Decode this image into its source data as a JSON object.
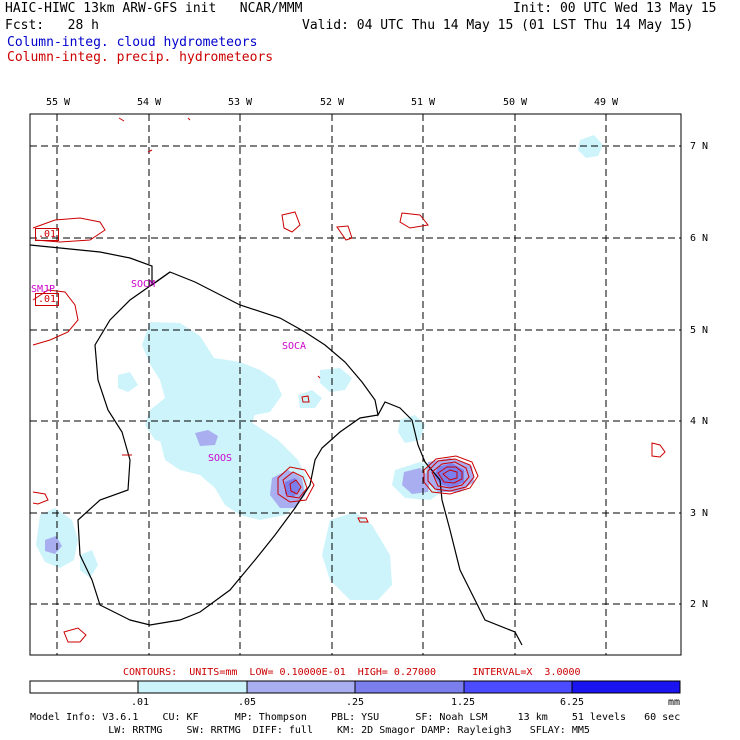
{
  "header": {
    "line1_left": "HAIC-HIWC 13km ARW-GFS init   NCAR/MMM",
    "line1_right": "Init: 00 UTC Wed 13 May 15",
    "line2_left": "Fcst:   28 h",
    "line2_right": "Valid: 04 UTC Thu 14 May 15 (01 LST Thu 14 May 15)",
    "legend_cloud": "Column-integ. cloud hydrometeors",
    "legend_precip": "Column-integ. precip. hydrometeors"
  },
  "map": {
    "lon_labels": [
      "55 W",
      "54 W",
      "53 W",
      "52 W",
      "51 W",
      "50 W",
      "49 W"
    ],
    "lat_labels": [
      "7 N",
      "6 N",
      "5 N",
      "4 N",
      "3 N",
      "2 N"
    ],
    "station_labels": [
      "SOCM",
      "SMJP",
      "SOCA",
      "SOOS"
    ],
    "contour_value_labels": [
      ".01",
      ".01"
    ],
    "colors": {
      "cloud_level1": "#ccf4fa",
      "cloud_level2": "#a9aef0",
      "cloud_level3": "#7b7fee",
      "precip_contour": "#cc0000",
      "coast": "#000000"
    }
  },
  "contours_line": "CONTOURS:  UNITS=mm  LOW= 0.10000E-01  HIGH= 0.27000      INTERVAL=X  3.0000",
  "colorbar": {
    "labels": [
      ".01",
      ".05",
      ".25",
      "1.25",
      "6.25",
      "mm"
    ],
    "colors": [
      "#ffffff",
      "#ccf4fa",
      "#a9aef0",
      "#7b7fee",
      "#4b4bff",
      "#1a14f0"
    ]
  },
  "footer": {
    "line1": "Model Info: V3.6.1    CU: KF      MP: Thompson    PBL: YSU      SF: Noah LSM     13 km    51 levels   60 sec",
    "line2": "             LW: RRTMG    SW: RRTMG  DIFF: full    KM: 2D Smagor DAMP: Rayleigh3   SFLAY: MM5"
  }
}
